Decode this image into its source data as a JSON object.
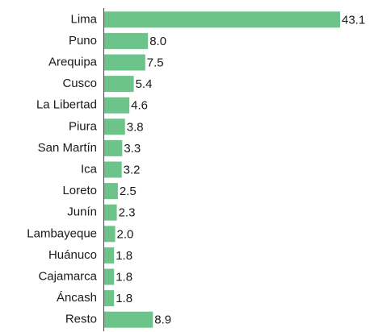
{
  "chart_data": {
    "type": "bar",
    "orientation": "horizontal",
    "categories": [
      "Lima",
      "Puno",
      "Arequipa",
      "Cusco",
      "La Libertad",
      "Piura",
      "San Martín",
      "Ica",
      "Loreto",
      "Junín",
      "Lambayeque",
      "Huánuco",
      "Cajamarca",
      "Áncash",
      "Resto"
    ],
    "values": [
      43.1,
      8.0,
      7.5,
      5.4,
      4.6,
      3.8,
      3.3,
      3.2,
      2.5,
      2.3,
      2.0,
      1.8,
      1.8,
      1.8,
      8.9
    ],
    "value_labels": [
      "43.1",
      "8.0",
      "7.5",
      "5.4",
      "4.6",
      "3.8",
      "3.3",
      "3.2",
      "2.5",
      "2.3",
      "2.0",
      "1.8",
      "1.8",
      "1.8",
      "8.9"
    ],
    "color": "#6dc48a"
  }
}
